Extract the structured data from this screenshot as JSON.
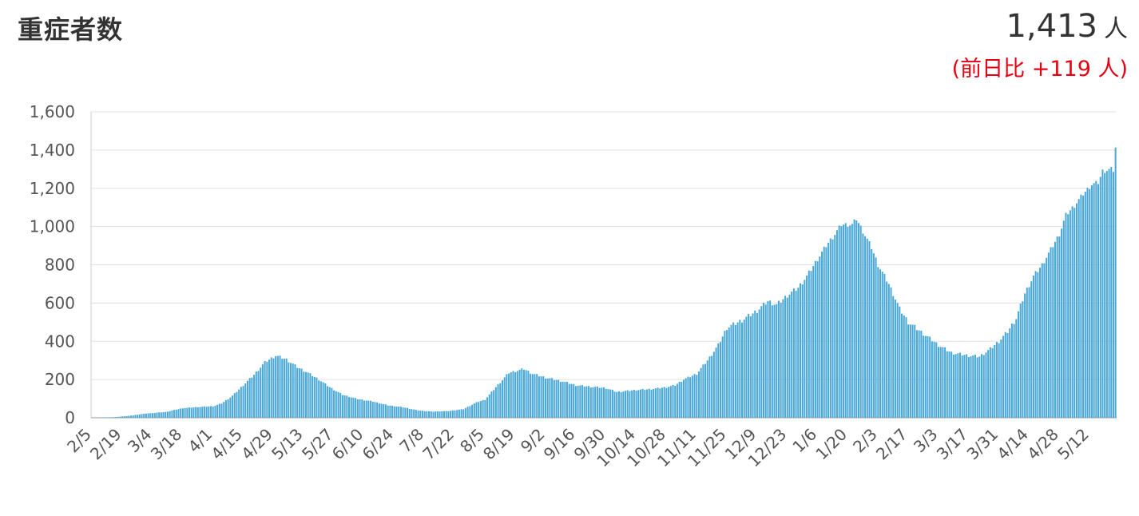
{
  "title": "重症者数",
  "summary": {
    "value": "1,413",
    "unit": "人",
    "change": "(前日比 +119 人)"
  },
  "colors": {
    "bar": "#4aa8d8",
    "text": "#333333",
    "delta": "#e50012",
    "grid": "#e0e0e0"
  },
  "chart_data": {
    "type": "bar",
    "title": "重症者数",
    "xlabel": "",
    "ylabel": "",
    "ylim": [
      0,
      1600
    ],
    "yticks": [
      0,
      200,
      400,
      600,
      800,
      1000,
      1200,
      1400,
      1600
    ],
    "ytick_labels": [
      "0",
      "200",
      "400",
      "600",
      "800",
      "1,000",
      "1,200",
      "1,400",
      "1,600"
    ],
    "grid": true,
    "legend": "none",
    "x_start": "2020-02-05",
    "x_end": "2021-05-24",
    "xtick_labels": [
      "2/5",
      "2/19",
      "3/4",
      "3/18",
      "4/1",
      "4/15",
      "4/29",
      "5/13",
      "5/27",
      "6/10",
      "6/24",
      "7/8",
      "7/22",
      "8/5",
      "8/19",
      "9/2",
      "9/16",
      "9/30",
      "10/14",
      "10/28",
      "11/11",
      "11/25",
      "12/9",
      "12/23",
      "1/6",
      "1/20",
      "2/3",
      "2/17",
      "3/3",
      "3/17",
      "3/31",
      "4/14",
      "4/28",
      "5/12"
    ],
    "series": [
      {
        "name": "",
        "keyframes": [
          [
            "2020-02-05",
            0
          ],
          [
            "2020-02-15",
            3
          ],
          [
            "2020-02-22",
            10
          ],
          [
            "2020-03-01",
            22
          ],
          [
            "2020-03-10",
            30
          ],
          [
            "2020-03-18",
            50
          ],
          [
            "2020-03-25",
            56
          ],
          [
            "2020-04-01",
            60
          ],
          [
            "2020-04-05",
            75
          ],
          [
            "2020-04-10",
            115
          ],
          [
            "2020-04-15",
            170
          ],
          [
            "2020-04-20",
            225
          ],
          [
            "2020-04-25",
            290
          ],
          [
            "2020-04-30",
            325
          ],
          [
            "2020-05-05",
            305
          ],
          [
            "2020-05-10",
            265
          ],
          [
            "2020-05-15",
            235
          ],
          [
            "2020-05-20",
            200
          ],
          [
            "2020-05-25",
            160
          ],
          [
            "2020-05-31",
            120
          ],
          [
            "2020-06-07",
            98
          ],
          [
            "2020-06-14",
            85
          ],
          [
            "2020-06-21",
            65
          ],
          [
            "2020-06-28",
            55
          ],
          [
            "2020-07-05",
            38
          ],
          [
            "2020-07-12",
            32
          ],
          [
            "2020-07-19",
            35
          ],
          [
            "2020-07-26",
            45
          ],
          [
            "2020-08-01",
            80
          ],
          [
            "2020-08-05",
            95
          ],
          [
            "2020-08-10",
            160
          ],
          [
            "2020-08-16",
            235
          ],
          [
            "2020-08-23",
            255
          ],
          [
            "2020-08-27",
            230
          ],
          [
            "2020-09-02",
            210
          ],
          [
            "2020-09-10",
            190
          ],
          [
            "2020-09-16",
            170
          ],
          [
            "2020-09-30",
            155
          ],
          [
            "2020-10-05",
            135
          ],
          [
            "2020-10-14",
            145
          ],
          [
            "2020-10-21",
            150
          ],
          [
            "2020-10-28",
            160
          ],
          [
            "2020-11-01",
            170
          ],
          [
            "2020-11-05",
            200
          ],
          [
            "2020-11-11",
            230
          ],
          [
            "2020-11-16",
            300
          ],
          [
            "2020-11-21",
            380
          ],
          [
            "2020-11-25",
            470
          ],
          [
            "2020-12-02",
            510
          ],
          [
            "2020-12-09",
            560
          ],
          [
            "2020-12-14",
            610
          ],
          [
            "2020-12-18",
            590
          ],
          [
            "2020-12-23",
            640
          ],
          [
            "2020-12-28",
            680
          ],
          [
            "2021-01-01",
            740
          ],
          [
            "2021-01-06",
            830
          ],
          [
            "2021-01-10",
            900
          ],
          [
            "2021-01-14",
            960
          ],
          [
            "2021-01-17",
            1010
          ],
          [
            "2021-01-22",
            1010
          ],
          [
            "2021-01-24",
            1040
          ],
          [
            "2021-01-27",
            975
          ],
          [
            "2021-01-31",
            890
          ],
          [
            "2021-02-03",
            800
          ],
          [
            "2021-02-08",
            700
          ],
          [
            "2021-02-13",
            570
          ],
          [
            "2021-02-17",
            500
          ],
          [
            "2021-02-24",
            440
          ],
          [
            "2021-03-03",
            380
          ],
          [
            "2021-03-09",
            340
          ],
          [
            "2021-03-17",
            325
          ],
          [
            "2021-03-22",
            320
          ],
          [
            "2021-03-27",
            360
          ],
          [
            "2021-03-31",
            400
          ],
          [
            "2021-04-04",
            450
          ],
          [
            "2021-04-08",
            520
          ],
          [
            "2021-04-12",
            650
          ],
          [
            "2021-04-16",
            740
          ],
          [
            "2021-04-20",
            800
          ],
          [
            "2021-04-24",
            880
          ],
          [
            "2021-04-28",
            960
          ],
          [
            "2021-05-01",
            1060
          ],
          [
            "2021-05-05",
            1110
          ],
          [
            "2021-05-09",
            1170
          ],
          [
            "2021-05-13",
            1220
          ],
          [
            "2021-05-16",
            1230
          ],
          [
            "2021-05-18",
            1290
          ],
          [
            "2021-05-22",
            1300
          ],
          [
            "2021-05-23",
            1294
          ],
          [
            "2021-05-24",
            1413
          ]
        ]
      }
    ]
  }
}
